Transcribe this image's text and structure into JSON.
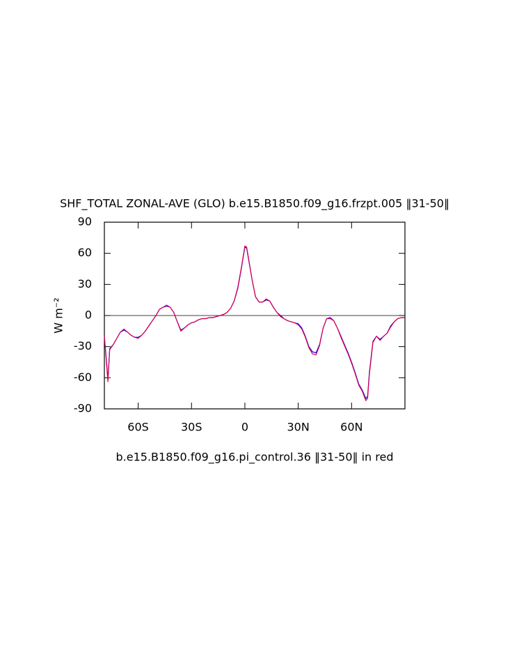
{
  "chart_data": {
    "type": "line",
    "title": "SHF_TOTAL ZONAL-AVE (GLO) b.e15.B1850.f09_g16.frzpt.005 ‖31-50‖",
    "subtitle": "b.e15.B1850.f09_g16.pi_control.36 ‖31-50‖ in red",
    "y_label": "W m⁻²",
    "x": [
      -79,
      -78,
      -77,
      -76,
      -74,
      -72,
      -70,
      -68,
      -66,
      -64,
      -62,
      -60,
      -58,
      -56,
      -54,
      -52,
      -50,
      -48,
      -46,
      -44,
      -42,
      -40,
      -38,
      -36,
      -34,
      -32,
      -30,
      -28,
      -26,
      -24,
      -22,
      -20,
      -18,
      -16,
      -14,
      -12,
      -10,
      -8,
      -6,
      -4,
      -2,
      0,
      1,
      2,
      4,
      6,
      8,
      10,
      12,
      14,
      16,
      18,
      20,
      22,
      24,
      26,
      28,
      30,
      32,
      34,
      36,
      38,
      40,
      42,
      44,
      46,
      48,
      50,
      52,
      54,
      56,
      58,
      60,
      62,
      64,
      66,
      68,
      69,
      70,
      72,
      74,
      76,
      78,
      80,
      82,
      84,
      86,
      88,
      90
    ],
    "series": [
      {
        "color": "#0000ff",
        "values": [
          -20,
          -40,
          -62,
          -32,
          -28,
          -22,
          -16,
          -14,
          -16,
          -19,
          -21,
          -21,
          -19,
          -15,
          -10,
          -5,
          0,
          6,
          8,
          9,
          8,
          3,
          -6,
          -14,
          -12,
          -9,
          -7,
          -6,
          -4,
          -3,
          -3,
          -2,
          -2,
          -1,
          0,
          1,
          3,
          7,
          14,
          26,
          45,
          66,
          65,
          55,
          35,
          18,
          13,
          13,
          15,
          14,
          8,
          3,
          0,
          -3,
          -5,
          -6,
          -7,
          -8,
          -12,
          -20,
          -30,
          -35,
          -36,
          -28,
          -12,
          -3,
          -2,
          -5,
          -12,
          -20,
          -28,
          -36,
          -45,
          -55,
          -66,
          -72,
          -80,
          -78,
          -55,
          -25,
          -20,
          -23,
          -20,
          -17,
          -10,
          -6,
          -3,
          -2,
          -2
        ]
      },
      {
        "color": "#e0004a",
        "values": [
          -20,
          -42,
          -64,
          -33,
          -28,
          -22,
          -16,
          -13,
          -16,
          -19,
          -21,
          -22,
          -19,
          -15,
          -10,
          -5,
          0,
          6,
          8,
          10,
          8,
          3,
          -6,
          -15,
          -12,
          -9,
          -7,
          -6,
          -4,
          -3,
          -3,
          -2,
          -2,
          -1,
          0,
          1,
          3,
          7,
          14,
          27,
          46,
          67,
          66,
          56,
          35,
          18,
          13,
          13,
          16,
          14,
          8,
          3,
          -1,
          -3,
          -5,
          -6,
          -7,
          -9,
          -13,
          -21,
          -31,
          -37,
          -38,
          -29,
          -12,
          -3,
          -3,
          -5,
          -12,
          -21,
          -29,
          -37,
          -46,
          -56,
          -67,
          -73,
          -82,
          -80,
          -57,
          -26,
          -20,
          -24,
          -20,
          -17,
          -11,
          -6,
          -3,
          -2,
          -2
        ]
      }
    ],
    "xlim": [
      -79,
      90
    ],
    "ylim": [
      -90,
      90
    ],
    "xticks": [
      {
        "value": -60,
        "label": "60S"
      },
      {
        "value": -30,
        "label": "30S"
      },
      0,
      {
        "value": 30,
        "label": "30N"
      },
      {
        "value": 60,
        "label": "60N"
      }
    ],
    "yticks": [
      90,
      60,
      30,
      0,
      -30,
      -60,
      -90
    ],
    "reference_line": 0
  }
}
